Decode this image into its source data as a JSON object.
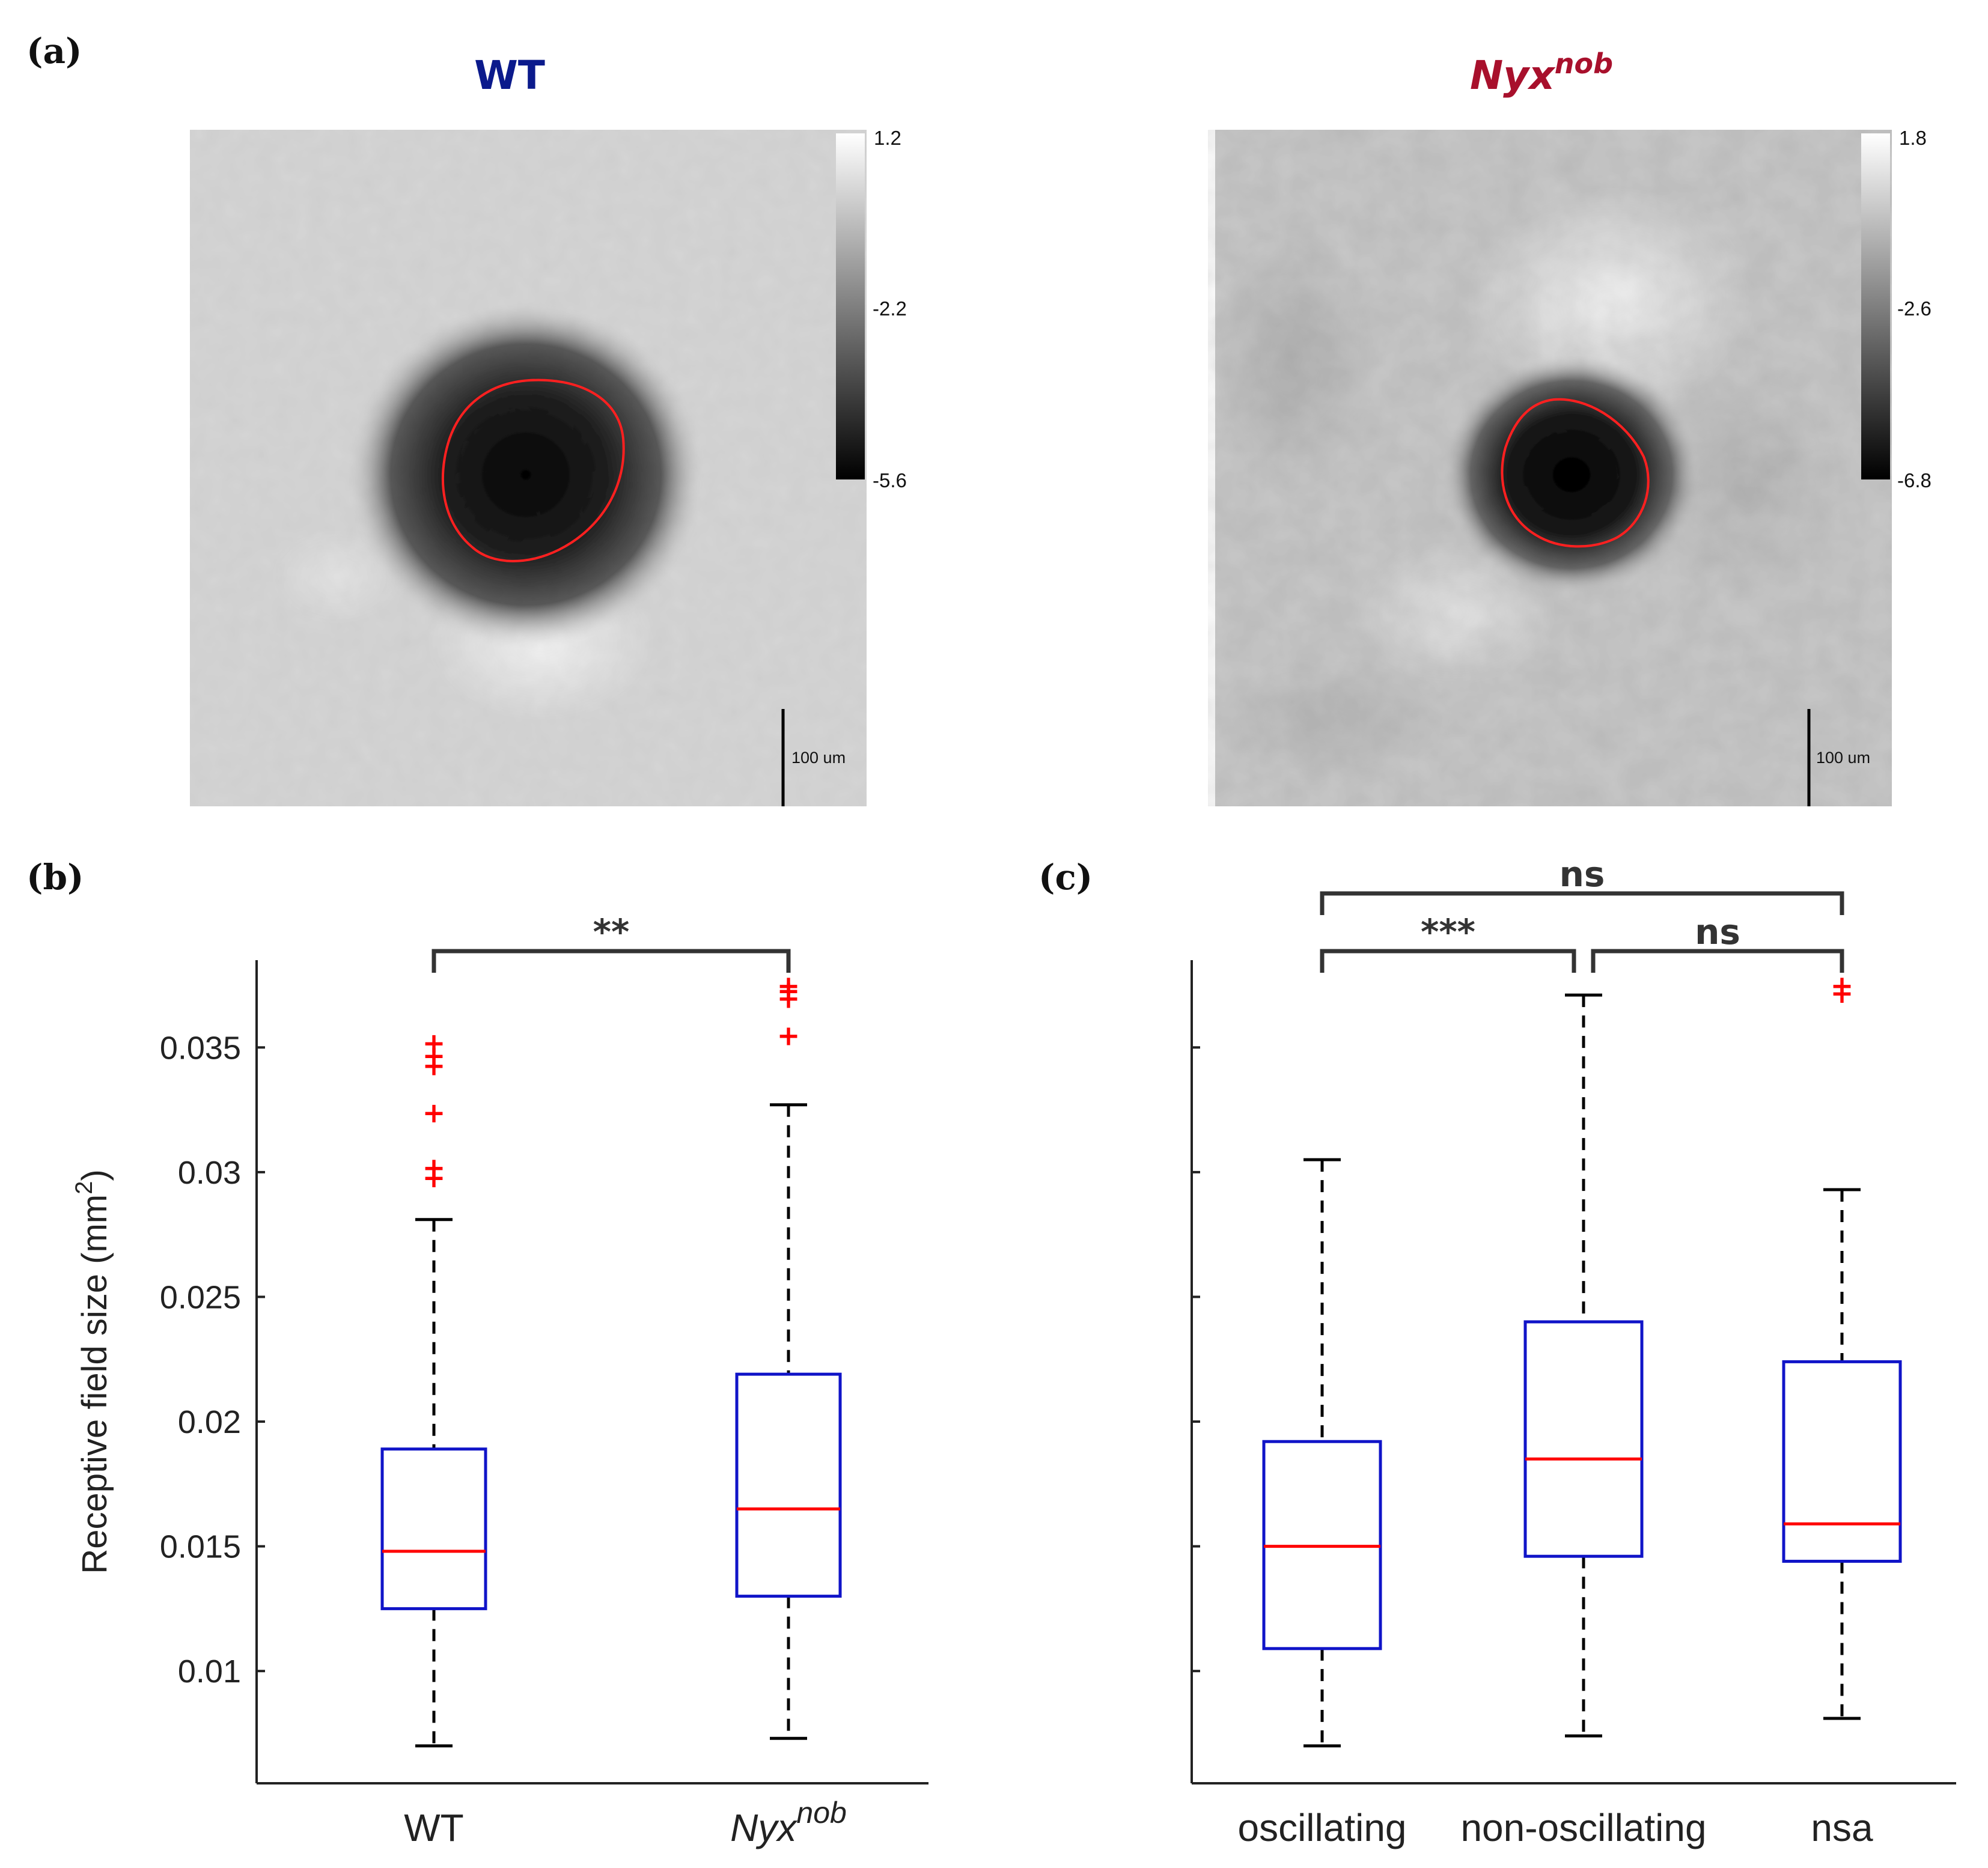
{
  "panels": {
    "a": "(a)",
    "b": "(b)",
    "c": "(c)"
  },
  "colors": {
    "wt_title": "#0b1a8c",
    "nyx_title": "#a8102c",
    "box": "#1014c8",
    "median": "#ff0000",
    "whisker": "#000000",
    "outlier": "#ff0000",
    "contour": "#ff2020",
    "bracket": "#333333"
  },
  "heatmaps": {
    "wt": {
      "title": "WT",
      "colorbar": {
        "max": "1.2",
        "mid": "-2.2",
        "min": "-5.6"
      },
      "scalebar": "100 um"
    },
    "nyx": {
      "title_base": "Nyx",
      "title_sup": "nob",
      "colorbar": {
        "max": "1.8",
        "mid": "-2.6",
        "min": "-6.8"
      },
      "scalebar": "100 um"
    }
  },
  "chart_data": [
    {
      "type": "box",
      "panel": "b",
      "ylabel": "Receptive field size (mm",
      "ylabel_sup": "2",
      "ylabel_end": ")",
      "ylim": [
        0.0055,
        0.0385
      ],
      "yticks": [
        0.01,
        0.015,
        0.02,
        0.025,
        0.03,
        0.035
      ],
      "ytick_labels": [
        "0.01",
        "0.015",
        "0.02",
        "0.025",
        "0.03",
        "0.035"
      ],
      "categories": [
        {
          "label": "WT",
          "sup": ""
        },
        {
          "label": "Nyx",
          "sup": "nob"
        }
      ],
      "boxes": [
        {
          "whisker_low": 0.007,
          "q1": 0.0125,
          "median": 0.0148,
          "q3": 0.0189,
          "whisker_high": 0.0281,
          "outliers": [
            0.0298,
            0.0302,
            0.0324,
            0.0343,
            0.0347,
            0.0352
          ]
        },
        {
          "whisker_low": 0.0073,
          "q1": 0.013,
          "median": 0.0165,
          "q3": 0.0219,
          "whisker_high": 0.0327,
          "outliers": [
            0.0355,
            0.037,
            0.0373,
            0.0375
          ]
        }
      ],
      "significance": [
        {
          "from": 0,
          "to": 1,
          "label": "**"
        }
      ]
    },
    {
      "type": "box",
      "panel": "c",
      "ylim": [
        0.0055,
        0.0385
      ],
      "yticks": [
        0.01,
        0.015,
        0.02,
        0.025,
        0.03,
        0.035
      ],
      "categories": [
        {
          "label": "oscillating",
          "sup": ""
        },
        {
          "label": "non-oscillating",
          "sup": ""
        },
        {
          "label": "nsa",
          "sup": ""
        }
      ],
      "boxes": [
        {
          "whisker_low": 0.007,
          "q1": 0.0109,
          "median": 0.015,
          "q3": 0.0192,
          "whisker_high": 0.0305,
          "outliers": []
        },
        {
          "whisker_low": 0.0074,
          "q1": 0.0146,
          "median": 0.0185,
          "q3": 0.024,
          "whisker_high": 0.0371,
          "outliers": []
        },
        {
          "whisker_low": 0.0081,
          "q1": 0.0144,
          "median": 0.0159,
          "q3": 0.0224,
          "whisker_high": 0.0293,
          "outliers": [
            0.0372,
            0.0375
          ]
        }
      ],
      "significance": [
        {
          "from": 0,
          "to": 1,
          "label": "***",
          "level": 1
        },
        {
          "from": 1,
          "to": 2,
          "label": "ns",
          "level": 1
        },
        {
          "from": 0,
          "to": 2,
          "label": "ns",
          "level": 2
        }
      ]
    }
  ]
}
